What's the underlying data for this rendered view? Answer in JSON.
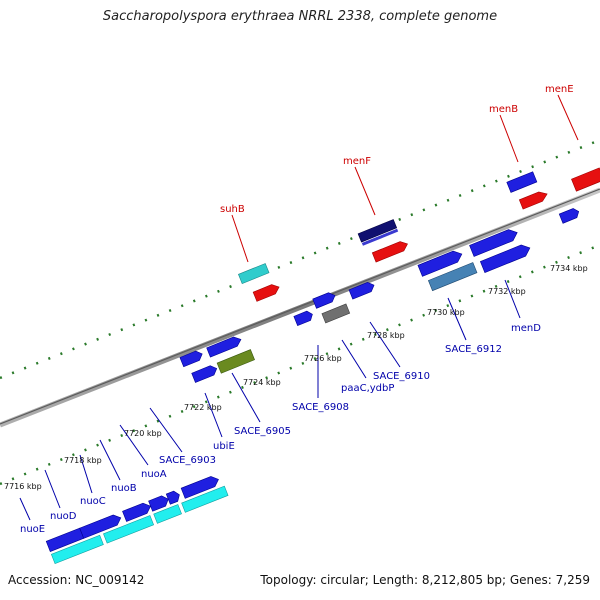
{
  "header": {
    "title": "Saccharopolyspora erythraea NRRL 2338, complete genome"
  },
  "footer": {
    "accession": "Accession: NC_009142",
    "summary": "Topology: circular; Length: 8,212,805 bp; Genes: 7,259"
  },
  "colors": {
    "cds": "#1f1fe0",
    "rna": "#e61010",
    "cyan": "#22eeee",
    "teal": "#30cccc",
    "navy": "#101070",
    "gray": "#707070",
    "olive": "#6a8a20",
    "steel": "#4682b4",
    "tick": "#2a7a2a",
    "backbone": "#8a8a8a",
    "label_forward": "#cc0000",
    "label_reverse": "#0000aa"
  },
  "scale_labels": [
    "7716 kbp",
    "7718 kbp",
    "7720 kbp",
    "7722 kbp",
    "7724 kbp",
    "7726 kbp",
    "7728 kbp",
    "7730 kbp",
    "7732 kbp",
    "7734 kbp"
  ],
  "forward_labels": [
    "suhB",
    "menF",
    "menB",
    "menE"
  ],
  "reverse_labels": [
    "nuoE",
    "nuoD",
    "nuoC",
    "nuoB",
    "nuoA",
    "SACE_6903",
    "ubiE",
    "SACE_6905",
    "SACE_6908",
    "paaC,ydbP",
    "SACE_6910",
    "SACE_6912",
    "menD"
  ]
}
